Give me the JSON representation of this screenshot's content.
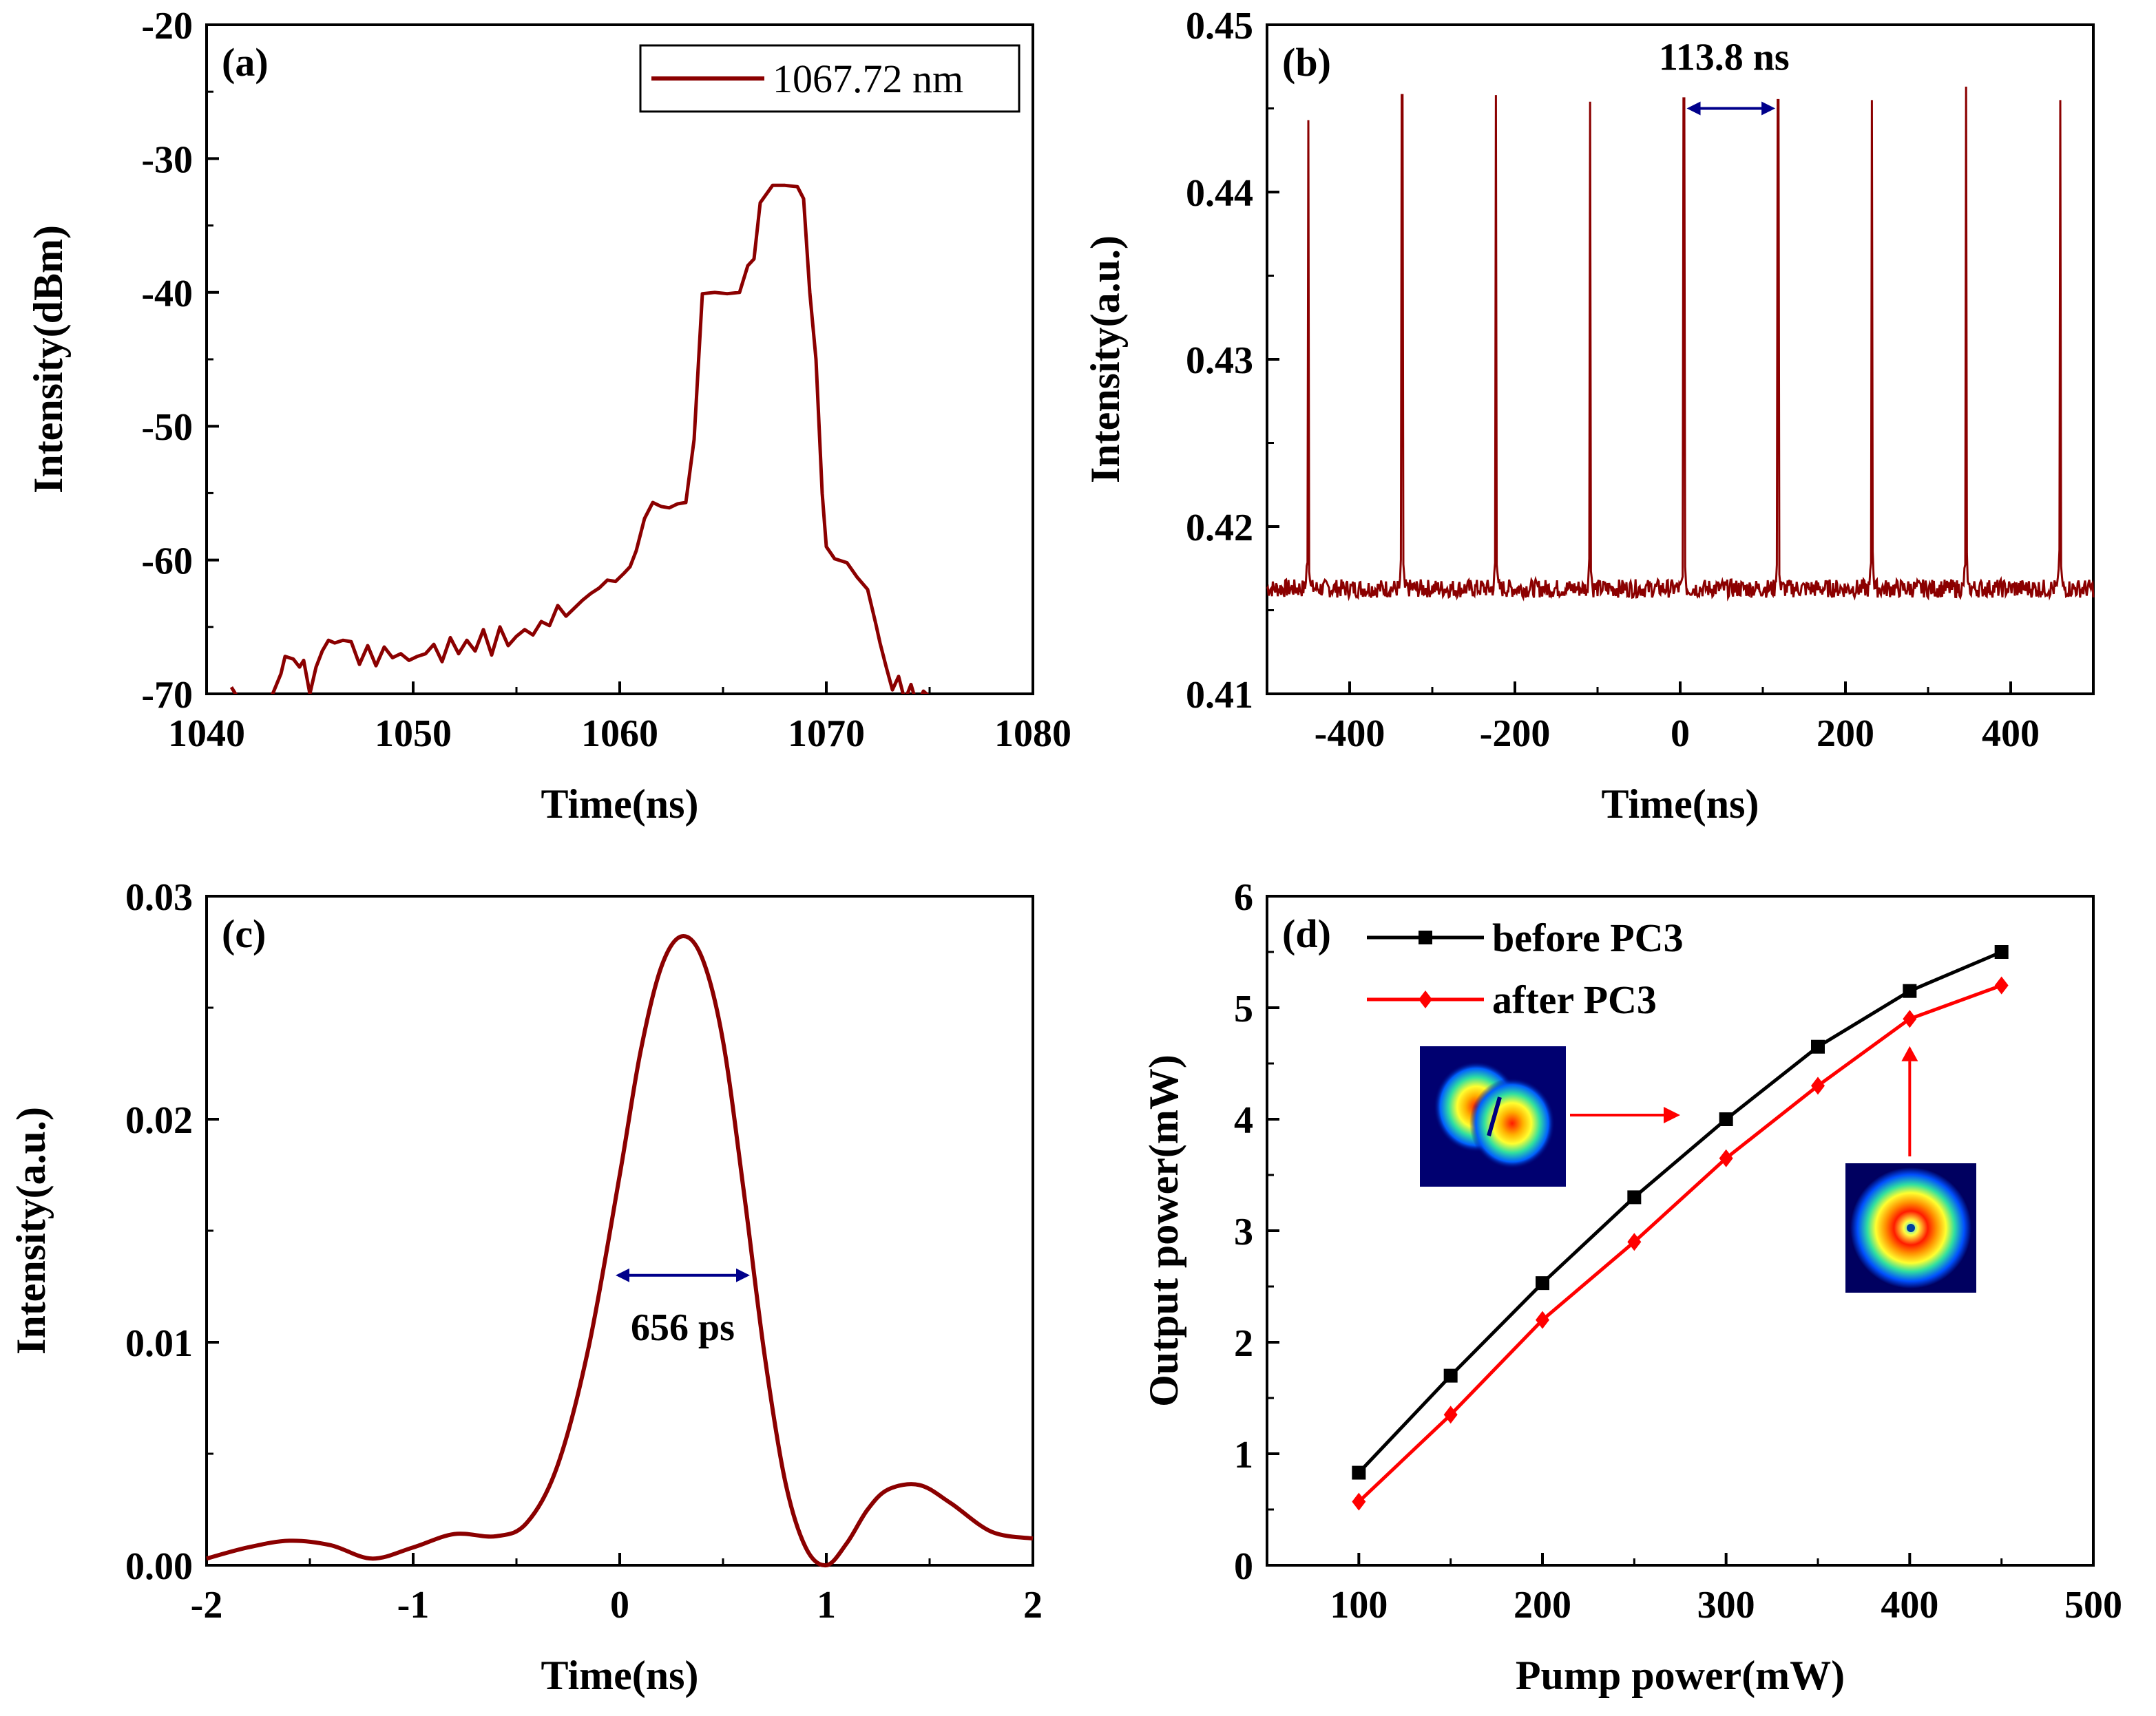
{
  "chart_data": [
    {
      "panel": "(a)",
      "type": "line",
      "title": "",
      "xlabel": "Time(ns)",
      "ylabel": "Intensity(dBm)",
      "xlim": [
        1040,
        1080
      ],
      "ylim": [
        -70,
        -20
      ],
      "xticks": [
        1040,
        1050,
        1060,
        1070,
        1080
      ],
      "yticks": [
        -70,
        -60,
        -50,
        -40,
        -30,
        -20
      ],
      "legend": [
        "1067.72 nm"
      ],
      "legend_position": "top-right",
      "color": "#8B0000",
      "series": [
        {
          "name": "1067.72 nm",
          "x": [
            1041.2,
            1041.6,
            1042.0,
            1042.6,
            1043.2,
            1043.6,
            1043.8,
            1044.2,
            1044.5,
            1044.7,
            1045.0,
            1045.3,
            1045.6,
            1045.9,
            1046.2,
            1046.6,
            1047.0,
            1047.4,
            1047.8,
            1048.2,
            1048.6,
            1049.0,
            1049.4,
            1049.8,
            1050.2,
            1050.6,
            1051.0,
            1051.4,
            1051.8,
            1052.2,
            1052.6,
            1053.0,
            1053.4,
            1053.8,
            1054.2,
            1054.6,
            1055.0,
            1055.4,
            1055.8,
            1056.2,
            1056.6,
            1057.0,
            1057.4,
            1057.8,
            1058.2,
            1058.6,
            1059.0,
            1059.4,
            1059.8,
            1060.2,
            1060.5,
            1060.8,
            1061.2,
            1061.6,
            1062.0,
            1062.4,
            1062.8,
            1063.2,
            1063.6,
            1064.0,
            1064.6,
            1065.2,
            1065.8,
            1066.2,
            1066.5,
            1066.8,
            1067.4,
            1068.0,
            1068.6,
            1068.9,
            1069.2,
            1069.5,
            1069.8,
            1070.0,
            1070.4,
            1071.0,
            1071.5,
            1072.0,
            1072.4,
            1072.6,
            1072.9,
            1073.2,
            1073.5,
            1073.8,
            1074.1,
            1074.4,
            1074.7,
            1075.0
          ],
          "y": [
            -69.5,
            -70.5,
            -71.0,
            -71.5,
            -70.0,
            -68.5,
            -67.2,
            -67.4,
            -68.0,
            -67.5,
            -70.0,
            -68.0,
            -66.8,
            -66.0,
            -66.2,
            -66.0,
            -66.1,
            -67.8,
            -66.4,
            -67.9,
            -66.5,
            -67.3,
            -67.0,
            -67.5,
            -67.2,
            -67.0,
            -66.3,
            -67.6,
            -65.8,
            -67.0,
            -66.0,
            -66.8,
            -65.2,
            -67.1,
            -65.0,
            -66.4,
            -65.7,
            -65.2,
            -65.6,
            -64.6,
            -64.9,
            -63.4,
            -64.2,
            -63.6,
            -63.0,
            -62.5,
            -62.1,
            -61.5,
            -61.6,
            -61.0,
            -60.5,
            -59.3,
            -56.9,
            -55.7,
            -56.0,
            -56.1,
            -55.8,
            -55.7,
            -51.0,
            -40.1,
            -40.0,
            -40.1,
            -40.0,
            -38.0,
            -37.5,
            -33.3,
            -32.0,
            -32.0,
            -32.1,
            -33.0,
            -40.0,
            -45.0,
            -55.0,
            -59.0,
            -59.9,
            -60.2,
            -61.3,
            -62.2,
            -64.8,
            -66.2,
            -68.0,
            -69.7,
            -68.7,
            -70.5,
            -69.3,
            -70.9,
            -69.8,
            -70.2
          ]
        }
      ]
    },
    {
      "panel": "(b)",
      "type": "line",
      "title": "",
      "xlabel": "Time(ns)",
      "ylabel": "Intensity(a.u.)",
      "xlim": [
        -500,
        500
      ],
      "ylim": [
        0.41,
        0.45
      ],
      "xticks": [
        -400,
        -200,
        0,
        200,
        400
      ],
      "yticks": [
        0.41,
        0.42,
        0.43,
        0.44,
        0.45
      ],
      "color": "#8B0000",
      "baseline": 0.4163,
      "pulse_period_ns": 113.8,
      "annotation": "113.8 ns",
      "series": [
        {
          "name": "pulse train",
          "pulse_times": [
            -450.3,
            -336.5,
            -222.8,
            -109.2,
            4.6,
            118.4,
            232.2,
            346.0,
            459.8
          ],
          "pulse_peaks": [
            0.4443,
            0.4458,
            0.4458,
            0.4454,
            0.4456,
            0.4455,
            0.4455,
            0.4463,
            0.4455
          ]
        }
      ]
    },
    {
      "panel": "(c)",
      "type": "line",
      "title": "",
      "xlabel": "Time(ns)",
      "ylabel": "Intensity(a.u.)",
      "xlim": [
        -2,
        2
      ],
      "ylim": [
        0,
        0.03
      ],
      "xticks": [
        -2,
        -1,
        0,
        1,
        2
      ],
      "yticks": [
        "0.00",
        "0.01",
        "0.02",
        "0.03"
      ],
      "color": "#8B0000",
      "annotation": "656 ps",
      "fwhm_span": [
        -0.02,
        0.63
      ],
      "fwhm_level": 0.013,
      "series": [
        {
          "name": "pulse profile",
          "x": [
            -2.0,
            -1.8,
            -1.6,
            -1.4,
            -1.2,
            -1.0,
            -0.8,
            -0.6,
            -0.45,
            -0.3,
            -0.15,
            0.0,
            0.1,
            0.2,
            0.3,
            0.4,
            0.5,
            0.6,
            0.7,
            0.8,
            0.9,
            1.0,
            1.1,
            1.2,
            1.3,
            1.45,
            1.6,
            1.8,
            2.0
          ],
          "y": [
            0.0003,
            0.0008,
            0.0011,
            0.0009,
            0.0003,
            0.0008,
            0.0014,
            0.0013,
            0.0019,
            0.0045,
            0.0098,
            0.0175,
            0.023,
            0.0268,
            0.0282,
            0.0272,
            0.0235,
            0.0168,
            0.0095,
            0.0038,
            0.0008,
            0.0,
            0.001,
            0.0025,
            0.0034,
            0.0036,
            0.0028,
            0.0015,
            0.0012
          ]
        }
      ]
    },
    {
      "panel": "(d)",
      "type": "line",
      "title": "",
      "xlabel": "Pump power(mW)",
      "ylabel": "Output power(mW)",
      "xlim": [
        50,
        500
      ],
      "ylim": [
        0,
        6
      ],
      "xticks": [
        100,
        200,
        300,
        400,
        500
      ],
      "yticks": [
        0,
        1,
        2,
        3,
        4,
        5,
        6
      ],
      "legend_position": "top-left",
      "x": [
        100,
        150,
        200,
        250,
        300,
        350,
        400,
        450
      ],
      "series": [
        {
          "name": "before PC3",
          "color": "#000000",
          "marker": "square",
          "values": [
            0.83,
            1.7,
            2.53,
            3.3,
            4.0,
            4.65,
            5.15,
            5.5
          ]
        },
        {
          "name": "after PC3",
          "color": "#FF0000",
          "marker": "diamond",
          "values": [
            0.57,
            1.35,
            2.2,
            2.9,
            3.65,
            4.3,
            4.9,
            5.2
          ]
        }
      ],
      "insets": [
        {
          "name": "two-lobe-mode-profile",
          "description_hidden": true
        },
        {
          "name": "donut-mode-profile",
          "description_hidden": true
        }
      ]
    }
  ]
}
